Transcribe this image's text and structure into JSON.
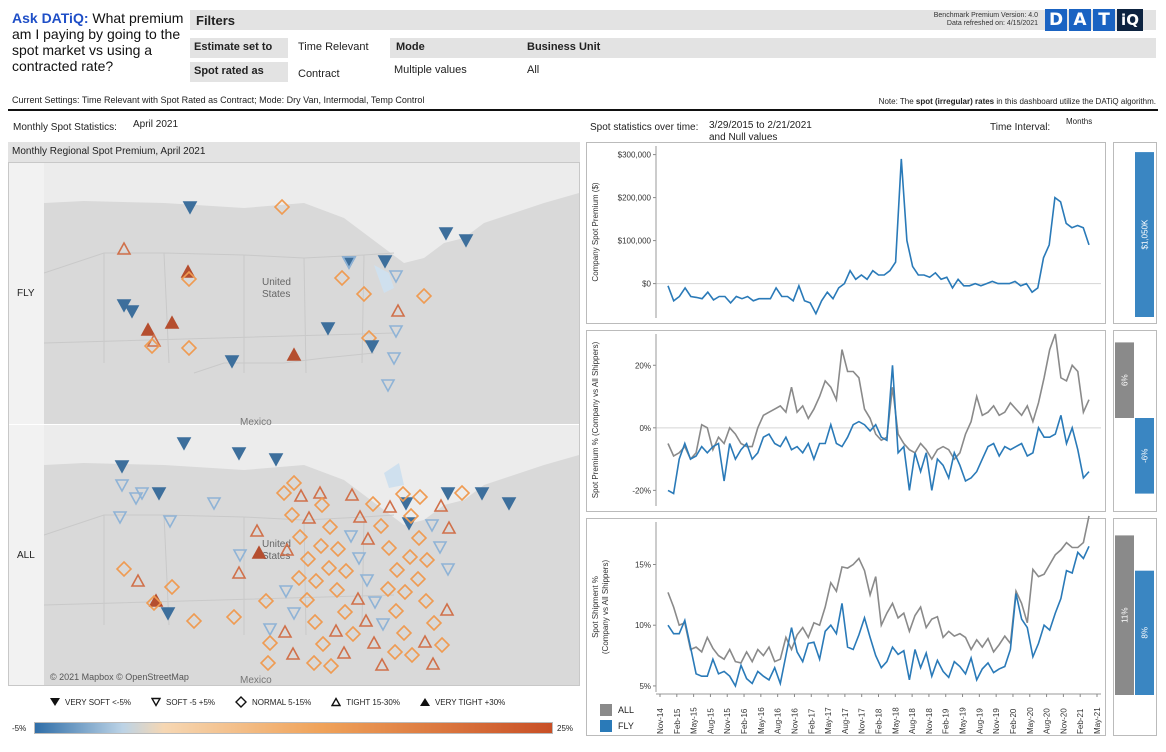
{
  "question": {
    "prefix": "Ask DATiQ:",
    "text": " What premium am I paying by going to the spot market vs using a contracted rate?"
  },
  "filters": {
    "title": "Filters",
    "estimate_label": "Estimate set to",
    "estimate_value": "Time Relevant",
    "spot_label": "Spot rated as",
    "spot_value": "Contract",
    "mode_label": "Mode",
    "mode_value": "Multiple values",
    "bu_label": "Business Unit",
    "bu_value": "All"
  },
  "benchmark": {
    "version": "Benchmark Premium Version: 4.0",
    "refreshed": "Data refreshed on: 4/15/2021"
  },
  "logo": {
    "letters": [
      "D",
      "A",
      "T",
      "iQ"
    ],
    "color": "#1a63c2"
  },
  "settings": "Current Settings: Time Relevant with Spot Rated as Contract; Mode: Dry Van, Intermodal, Temp Control",
  "note": {
    "pre": "Note: The ",
    "bold": "spot (irregular) rates",
    "post": " in this dashboard utilize the DATiQ algorithm."
  },
  "monthly": {
    "label": "Monthly Spot Statistics:",
    "value": "April 2021"
  },
  "map": {
    "header": "Monthly Regional Spot Premium, April 2021",
    "rows": [
      "FLY",
      "ALL"
    ],
    "labels": {
      "country": "United",
      "country2": "States",
      "mexico": "Mexico"
    },
    "copyright": "© 2021 Mapbox © OpenStreetMap"
  },
  "legend": {
    "items": [
      {
        "icon": "filled-down-triangle-icon",
        "label": "VERY SOFT <-5%"
      },
      {
        "icon": "down-triangle-icon",
        "label": "SOFT -5 +5%"
      },
      {
        "icon": "diamond-icon",
        "label": "NORMAL 5-15%"
      },
      {
        "icon": "up-triangle-icon",
        "label": "TIGHT 15-30%"
      },
      {
        "icon": "filled-up-triangle-icon",
        "label": "VERY TIGHT +30%"
      }
    ],
    "scale_min": "-5%",
    "scale_max": "25%"
  },
  "over_time": {
    "label": "Spot statistics over time:",
    "range": "3/29/2015 to 2/21/2021",
    "null_note": "and Null values",
    "interval_label": "Time Interval:",
    "interval_value": "Months"
  },
  "chart_data": [
    {
      "type": "line",
      "title": "",
      "ylabel": "Company Spot Premium ($)",
      "yticks": [
        "$300,000",
        "$200,000",
        "$100,000",
        "$0"
      ],
      "ylim": [
        -80000,
        320000
      ],
      "series": [
        {
          "name": "FLY",
          "color": "#2a7ab8",
          "values": [
            -5000,
            -40000,
            -30000,
            -10000,
            -30000,
            -32000,
            -35000,
            -20000,
            -38000,
            -30000,
            -30000,
            -45000,
            -30000,
            -35000,
            -30000,
            -40000,
            -35000,
            -35000,
            -35000,
            -10000,
            -30000,
            -30000,
            -40000,
            -5000,
            -40000,
            -45000,
            -70000,
            -40000,
            -20000,
            -35000,
            -10000,
            0,
            30000,
            10000,
            20000,
            10000,
            30000,
            20000,
            20000,
            30000,
            50000,
            290000,
            100000,
            40000,
            20000,
            20000,
            15000,
            25000,
            10000,
            15000,
            -10000,
            10000,
            -5000,
            -5000,
            0,
            -5000,
            0,
            5000,
            0,
            0,
            0,
            5000,
            -5000,
            0,
            -20000,
            -10000,
            60000,
            90000,
            200000,
            190000,
            140000,
            130000,
            135000,
            130000,
            90000
          ]
        }
      ]
    },
    {
      "type": "line",
      "title": "",
      "ylabel": "Spot Premium % (Company vs All Shippers)",
      "yticks": [
        "20%",
        "0%",
        "-20%"
      ],
      "ylim": [
        -25,
        30
      ],
      "series": [
        {
          "name": "ALL",
          "color": "#8a8a8a",
          "values": [
            -5,
            -9,
            -8,
            -6,
            -10,
            -8,
            1,
            0,
            -7,
            -3,
            -5,
            0,
            -2,
            -5,
            -6,
            -6,
            0,
            4,
            5,
            6,
            7,
            5,
            13,
            5,
            7,
            3,
            6,
            10,
            15,
            13,
            9,
            25,
            18,
            18,
            16,
            6,
            3,
            -2,
            -4,
            -3,
            13,
            -2,
            -5,
            -7,
            -8,
            -5,
            -7,
            -10,
            -7,
            -6,
            -7,
            -10,
            -8,
            -2,
            2,
            10,
            4,
            5,
            7,
            4,
            5,
            8,
            6,
            4,
            7,
            2,
            8,
            16,
            25,
            30,
            16,
            15,
            20,
            18,
            5,
            9
          ]
        },
        {
          "name": "FLY",
          "color": "#2a7ab8",
          "values": [
            -20,
            -21,
            -10,
            -5,
            -10,
            -9,
            -6,
            -8,
            -6,
            -5,
            -17,
            -5,
            -10,
            -7,
            -5,
            -10,
            -8,
            -3,
            -2,
            -5,
            -6,
            -3,
            -7,
            -6,
            -8,
            -5,
            -10,
            -5,
            -5,
            1,
            -5,
            -6,
            -3,
            1,
            2,
            1,
            -1,
            1,
            -3,
            -4,
            20,
            -8,
            -6,
            -20,
            -8,
            -14,
            -8,
            -20,
            -10,
            -12,
            -16,
            -8,
            -12,
            -17,
            -16,
            -14,
            -10,
            -6,
            -5,
            -9,
            -6,
            -7,
            -6,
            -5,
            -9,
            -8,
            0,
            -3,
            -3,
            -2,
            4,
            -5,
            0,
            -7,
            -16,
            -14
          ]
        }
      ]
    },
    {
      "type": "line",
      "title": "",
      "ylabel": "Spot Shipment % (Company vs All Shippers)",
      "yticks": [
        "15%",
        "10%",
        "5%"
      ],
      "ylim": [
        4.5,
        18.5
      ],
      "series": [
        {
          "name": "ALL",
          "color": "#8a8a8a",
          "values": [
            12.7,
            11.5,
            10,
            10.2,
            8,
            8.2,
            7.8,
            9,
            8.1,
            7.5,
            7.2,
            8,
            7,
            6.9,
            7.8,
            7,
            8,
            7.5,
            8.2,
            7,
            7.2,
            9,
            8,
            9.2,
            9.8,
            9,
            10.2,
            10,
            11.5,
            13.5,
            12.8,
            14.8,
            14.7,
            15,
            15.5,
            14.5,
            12.5,
            14,
            10,
            11,
            11.8,
            10.6,
            11,
            9.5,
            10.8,
            11.5,
            9.8,
            10.5,
            10.7,
            9,
            9.5,
            9.1,
            9.3,
            9,
            8,
            8.8,
            8.2,
            8.9,
            7.8,
            8.4,
            9.1,
            8.5,
            12.8,
            11.8,
            10.2,
            14.6,
            14,
            14.2,
            15,
            15.8,
            16.2,
            16.8,
            16.4,
            16.4,
            16.8,
            19
          ]
        },
        {
          "name": "FLY",
          "color": "#2a7ab8",
          "values": [
            10,
            9.3,
            9.3,
            10.4,
            8.2,
            6,
            5.8,
            5.8,
            7.2,
            6,
            6.2,
            5.8,
            5,
            6.7,
            5.6,
            5.2,
            6.2,
            5.8,
            5.5,
            6.5,
            5.2,
            7.5,
            9.8,
            7.8,
            7,
            8.5,
            8.6,
            7.2,
            9.5,
            10,
            9.3,
            11.8,
            8.2,
            8,
            9.2,
            10.6,
            9,
            7.5,
            6.5,
            7,
            8.2,
            7.6,
            7.9,
            5.5,
            8,
            6.5,
            7.7,
            5.8,
            7.1,
            6.2,
            5.7,
            7,
            6.6,
            6,
            7.3,
            5.5,
            6.4,
            6.9,
            6.1,
            6.4,
            6.6,
            8,
            12.6,
            10.5,
            9.8,
            7.4,
            8.5,
            10,
            9.6,
            11,
            12.2,
            14.5,
            14.3,
            16,
            15.5,
            16.5
          ]
        }
      ]
    }
  ],
  "x_axis": {
    "ticks": [
      "Nov-14",
      "Feb-15",
      "May-15",
      "Aug-15",
      "Nov-15",
      "Feb-16",
      "May-16",
      "Aug-16",
      "Nov-16",
      "Feb-17",
      "May-17",
      "Aug-17",
      "Nov-17",
      "Feb-18",
      "May-18",
      "Aug-18",
      "Nov-18",
      "Feb-19",
      "May-19",
      "Aug-19",
      "Nov-19",
      "Feb-20",
      "May-20",
      "Aug-20",
      "Nov-20",
      "Feb-21",
      "May-21"
    ]
  },
  "chart_legend": [
    {
      "name": "ALL",
      "color": "#8a8a8a"
    },
    {
      "name": "FLY",
      "color": "#2a7ab8"
    }
  ],
  "kpis": [
    {
      "label": "$1,050K",
      "fraction": 0.97,
      "color": "#3a86c2",
      "sign": 1
    },
    {
      "label": "6%",
      "fraction": 0.45,
      "color": "#8a8a8a",
      "sign": 1
    },
    {
      "label": "-6%",
      "fraction": 0.45,
      "color": "#3a86c2",
      "sign": -1
    },
    {
      "label": "11%",
      "fraction": 0.95,
      "color": "#8a8a8a",
      "sign": 1
    },
    {
      "label": "8%",
      "fraction": 0.74,
      "color": "#3a86c2",
      "sign": 1
    }
  ]
}
